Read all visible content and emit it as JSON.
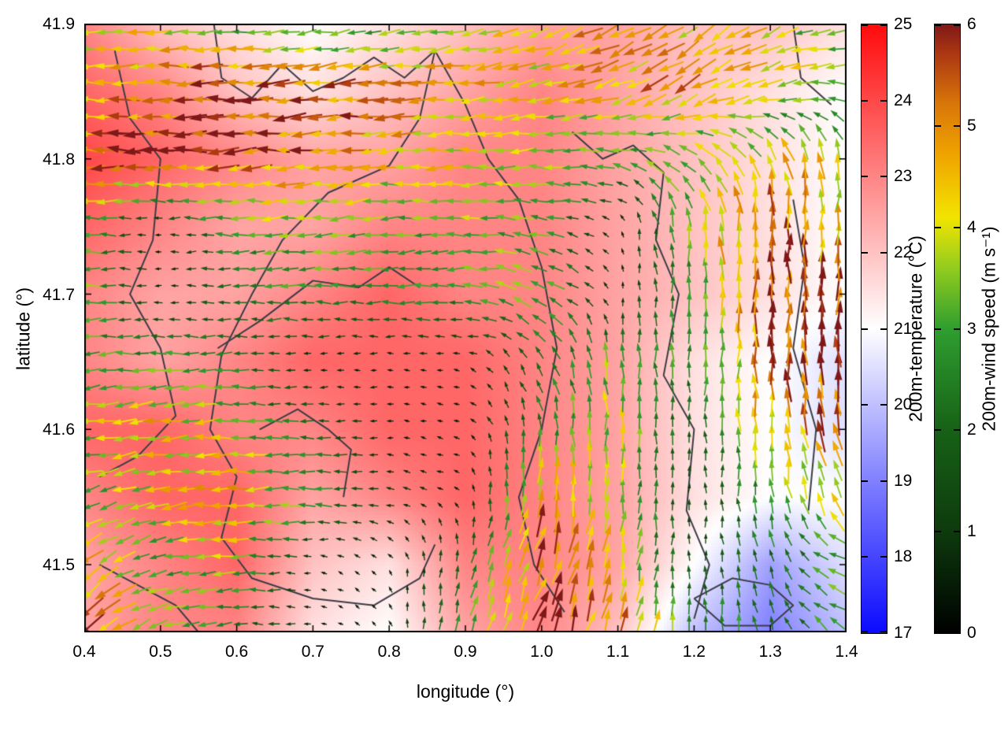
{
  "page": {
    "background": "#ffffff"
  },
  "chart_data": {
    "type": "heatmap",
    "subtype": "temperature-field-with-wind-vectors",
    "title": "",
    "xlabel": "longitude (°)",
    "ylabel": "latitude (°)",
    "xlim": [
      0.4,
      1.4
    ],
    "ylim": [
      41.45,
      41.9
    ],
    "xticks": [
      0.4,
      0.5,
      0.6,
      0.7,
      0.8,
      0.9,
      1.0,
      1.1,
      1.2,
      1.3,
      1.4
    ],
    "xtick_labels": [
      "0.4",
      "0.5",
      "0.6",
      "0.7",
      "0.8",
      "0.9",
      "1.0",
      "1.1",
      "1.2",
      "1.3",
      "1.4"
    ],
    "yticks": [
      41.5,
      41.6,
      41.7,
      41.8,
      41.9
    ],
    "ytick_labels": [
      "41.5",
      "41.6",
      "41.7",
      "41.8",
      "41.9"
    ],
    "grid_on": false,
    "border_color": "#000000",
    "boundary_color": "#3c3c46",
    "colorbars": [
      {
        "label": "200m-temperature (°C)",
        "min": 17,
        "max": 25,
        "ticks": [
          17,
          18,
          19,
          20,
          21,
          22,
          23,
          24,
          25
        ],
        "tick_labels": [
          "17",
          "18",
          "19",
          "20",
          "21",
          "22",
          "23",
          "24",
          "25"
        ],
        "stops": [
          {
            "v": 17,
            "c": "#0a0aff"
          },
          {
            "v": 19,
            "c": "#8080ff"
          },
          {
            "v": 21,
            "c": "#ffffff"
          },
          {
            "v": 23,
            "c": "#ff8585"
          },
          {
            "v": 25,
            "c": "#ff0a0a"
          }
        ]
      },
      {
        "label": "200m-wind speed (m s⁻¹)",
        "min": 0,
        "max": 6,
        "ticks": [
          0,
          1,
          2,
          3,
          4,
          5,
          6
        ],
        "tick_labels": [
          "0",
          "1",
          "2",
          "3",
          "4",
          "5",
          "6"
        ],
        "stops": [
          {
            "v": 0.0,
            "c": "#000000"
          },
          {
            "v": 1.0,
            "c": "#0d3a0d"
          },
          {
            "v": 2.0,
            "c": "#176117"
          },
          {
            "v": 3.0,
            "c": "#2f9e2f"
          },
          {
            "v": 3.6,
            "c": "#93cc1e"
          },
          {
            "v": 4.1,
            "c": "#f2e400"
          },
          {
            "v": 4.7,
            "c": "#f0a500"
          },
          {
            "v": 5.2,
            "c": "#d97808"
          },
          {
            "v": 5.7,
            "c": "#ad3812"
          },
          {
            "v": 6.0,
            "c": "#7f1818"
          }
        ]
      }
    ],
    "grid": {
      "lons": [
        0.4,
        0.5,
        0.6,
        0.7,
        0.8,
        0.9,
        1.0,
        1.1,
        1.2,
        1.3,
        1.4
      ],
      "lats": [
        41.45,
        41.5,
        41.55,
        41.6,
        41.65,
        41.7,
        41.75,
        41.8,
        41.85,
        41.9
      ]
    },
    "temperature": [
      [
        22.5,
        23.0,
        23.0,
        21.5,
        21.0,
        22.5,
        23.0,
        22.0,
        20.0,
        19.0,
        20.0
      ],
      [
        22.5,
        23.0,
        23.5,
        22.0,
        21.5,
        23.0,
        23.0,
        22.5,
        21.0,
        19.5,
        20.5
      ],
      [
        23.0,
        23.5,
        23.5,
        22.5,
        23.0,
        23.5,
        23.0,
        22.5,
        21.5,
        21.0,
        21.0
      ],
      [
        23.5,
        23.5,
        23.0,
        23.0,
        23.5,
        23.5,
        23.0,
        22.5,
        21.5,
        21.0,
        20.5
      ],
      [
        23.0,
        22.5,
        23.0,
        23.5,
        23.5,
        23.5,
        23.0,
        22.5,
        21.5,
        21.0,
        20.5
      ],
      [
        23.0,
        22.5,
        22.5,
        23.0,
        23.5,
        23.0,
        23.0,
        22.5,
        22.0,
        21.5,
        21.0
      ],
      [
        23.5,
        23.0,
        22.5,
        22.5,
        23.0,
        23.0,
        23.0,
        22.5,
        22.0,
        21.5,
        21.0
      ],
      [
        24.0,
        23.5,
        23.0,
        22.5,
        22.5,
        23.0,
        23.0,
        22.5,
        22.0,
        21.5,
        21.0
      ],
      [
        23.5,
        23.0,
        22.0,
        21.5,
        22.0,
        22.5,
        23.0,
        22.5,
        22.0,
        21.5,
        21.0
      ],
      [
        23.0,
        22.0,
        21.5,
        21.0,
        21.5,
        22.0,
        22.5,
        22.5,
        22.0,
        22.0,
        21.5
      ]
    ],
    "wind_speed": [
      [
        5.5,
        4.0,
        2.0,
        0.5,
        0.5,
        3.0,
        5.5,
        5.0,
        3.0,
        2.5,
        3.0
      ],
      [
        5.0,
        3.0,
        3.5,
        0.5,
        0.5,
        2.0,
        5.5,
        4.0,
        1.5,
        2.0,
        3.5
      ],
      [
        3.0,
        4.0,
        4.5,
        3.0,
        1.0,
        0.5,
        5.0,
        3.5,
        1.0,
        3.0,
        4.0
      ],
      [
        3.5,
        4.5,
        3.5,
        2.0,
        0.5,
        0.5,
        2.5,
        4.0,
        1.5,
        4.5,
        5.5
      ],
      [
        3.0,
        3.0,
        2.5,
        0.5,
        0.5,
        0.5,
        2.0,
        3.5,
        2.5,
        5.5,
        6.0
      ],
      [
        3.5,
        0.5,
        2.0,
        3.0,
        2.5,
        3.0,
        3.5,
        0.5,
        3.0,
        6.0,
        5.5
      ],
      [
        3.0,
        0.5,
        3.0,
        3.5,
        3.0,
        3.5,
        3.0,
        0.5,
        3.5,
        5.5,
        4.0
      ],
      [
        5.5,
        6.0,
        5.5,
        5.0,
        4.5,
        4.0,
        3.5,
        3.0,
        4.0,
        4.5,
        4.0
      ],
      [
        4.0,
        5.5,
        6.0,
        5.5,
        5.0,
        4.5,
        4.0,
        4.5,
        5.0,
        4.5,
        3.5
      ],
      [
        3.5,
        4.0,
        3.0,
        2.5,
        3.0,
        4.0,
        4.5,
        5.0,
        4.5,
        4.0,
        3.0
      ]
    ],
    "wind_dir_deg": [
      [
        225,
        200,
        180,
        180,
        120,
        80,
        70,
        75,
        90,
        100,
        150
      ],
      [
        215,
        195,
        180,
        170,
        130,
        80,
        70,
        80,
        90,
        110,
        160
      ],
      [
        200,
        190,
        180,
        180,
        170,
        150,
        80,
        85,
        90,
        95,
        120
      ],
      [
        190,
        185,
        180,
        180,
        175,
        160,
        100,
        90,
        90,
        95,
        100
      ],
      [
        185,
        180,
        180,
        180,
        180,
        170,
        120,
        95,
        90,
        90,
        95
      ],
      [
        180,
        180,
        180,
        180,
        180,
        180,
        150,
        100,
        90,
        90,
        90
      ],
      [
        180,
        180,
        180,
        185,
        185,
        180,
        170,
        120,
        95,
        90,
        85
      ],
      [
        180,
        180,
        182,
        185,
        185,
        182,
        180,
        170,
        140,
        110,
        90
      ],
      [
        180,
        180,
        182,
        185,
        185,
        185,
        190,
        200,
        210,
        200,
        170
      ],
      [
        180,
        182,
        185,
        188,
        190,
        195,
        200,
        210,
        215,
        210,
        190
      ]
    ],
    "arrow_grid": {
      "nx": 46,
      "ny": 36
    },
    "boundary_lines": [
      [
        [
          0.44,
          41.88
        ],
        [
          0.46,
          41.83
        ],
        [
          0.5,
          41.8
        ],
        [
          0.49,
          41.74
        ],
        [
          0.46,
          41.7
        ],
        [
          0.5,
          41.66
        ],
        [
          0.52,
          41.61
        ],
        [
          0.47,
          41.58
        ],
        [
          0.42,
          41.565
        ]
      ],
      [
        [
          0.57,
          41.9
        ],
        [
          0.58,
          41.86
        ],
        [
          0.62,
          41.845
        ],
        [
          0.66,
          41.87
        ],
        [
          0.7,
          41.85
        ],
        [
          0.74,
          41.86
        ],
        [
          0.78,
          41.875
        ],
        [
          0.82,
          41.86
        ],
        [
          0.86,
          41.88
        ]
      ],
      [
        [
          0.86,
          41.88
        ],
        [
          0.84,
          41.83
        ],
        [
          0.8,
          41.795
        ],
        [
          0.72,
          41.775
        ],
        [
          0.66,
          41.74
        ],
        [
          0.62,
          41.7
        ],
        [
          0.58,
          41.655
        ],
        [
          0.565,
          41.6
        ],
        [
          0.6,
          41.565
        ],
        [
          0.58,
          41.52
        ],
        [
          0.62,
          41.49
        ],
        [
          0.7,
          41.475
        ],
        [
          0.78,
          41.47
        ],
        [
          0.84,
          41.49
        ],
        [
          0.86,
          41.515
        ]
      ],
      [
        [
          0.575,
          41.66
        ],
        [
          0.63,
          41.68
        ],
        [
          0.7,
          41.71
        ],
        [
          0.76,
          41.705
        ],
        [
          0.8,
          41.72
        ],
        [
          0.84,
          41.705
        ]
      ],
      [
        [
          0.86,
          41.88
        ],
        [
          0.9,
          41.84
        ],
        [
          0.93,
          41.8
        ],
        [
          0.97,
          41.77
        ],
        [
          1.0,
          41.72
        ],
        [
          1.02,
          41.66
        ],
        [
          1.0,
          41.6
        ],
        [
          0.97,
          41.55
        ],
        [
          0.99,
          41.5
        ],
        [
          1.03,
          41.465
        ]
      ],
      [
        [
          1.04,
          41.82
        ],
        [
          1.08,
          41.8
        ],
        [
          1.12,
          41.81
        ],
        [
          1.16,
          41.79
        ],
        [
          1.15,
          41.74
        ],
        [
          1.18,
          41.7
        ],
        [
          1.16,
          41.64
        ],
        [
          1.2,
          41.6
        ],
        [
          1.19,
          41.54
        ],
        [
          1.22,
          41.5
        ],
        [
          1.2,
          41.46
        ]
      ],
      [
        [
          1.33,
          41.77
        ],
        [
          1.345,
          41.72
        ],
        [
          1.33,
          41.66
        ],
        [
          1.36,
          41.6
        ],
        [
          1.35,
          41.54
        ]
      ],
      [
        [
          1.2,
          41.475
        ],
        [
          1.25,
          41.49
        ],
        [
          1.3,
          41.485
        ],
        [
          1.33,
          41.47
        ],
        [
          1.3,
          41.455
        ],
        [
          1.24,
          41.455
        ],
        [
          1.2,
          41.475
        ]
      ],
      [
        [
          0.42,
          41.5
        ],
        [
          0.47,
          41.485
        ],
        [
          0.52,
          41.47
        ],
        [
          0.55,
          41.45
        ]
      ],
      [
        [
          0.63,
          41.6
        ],
        [
          0.68,
          41.615
        ],
        [
          0.72,
          41.6
        ],
        [
          0.75,
          41.585
        ],
        [
          0.74,
          41.55
        ]
      ],
      [
        [
          1.33,
          41.9
        ],
        [
          1.34,
          41.86
        ],
        [
          1.38,
          41.84
        ]
      ]
    ]
  }
}
